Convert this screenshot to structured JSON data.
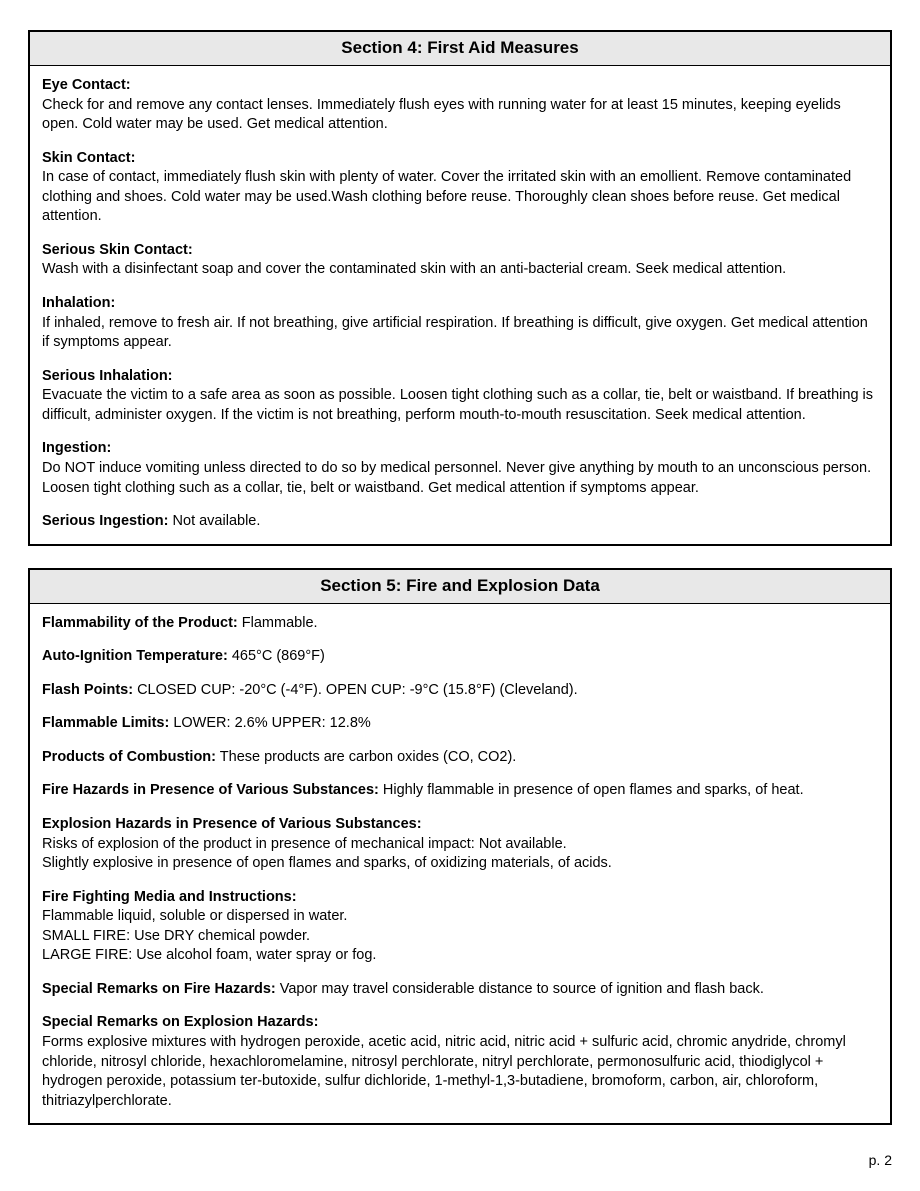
{
  "section4": {
    "title": "Section 4: First Aid Measures",
    "entries": [
      {
        "label": "Eye Contact:",
        "mode": "block",
        "text": "Check for and remove any contact lenses. Immediately flush eyes with running water for at least 15 minutes, keeping eyelids open. Cold water may be used. Get medical attention."
      },
      {
        "label": "Skin Contact:",
        "mode": "block",
        "text": "In case of contact, immediately flush skin with plenty of water. Cover the irritated skin with an emollient. Remove contaminated clothing and shoes. Cold water may be used.Wash clothing before reuse. Thoroughly clean shoes before reuse. Get medical attention."
      },
      {
        "label": "Serious Skin Contact:",
        "mode": "block",
        "text": "Wash with a disinfectant soap and cover the contaminated skin with an anti-bacterial cream. Seek medical attention."
      },
      {
        "label": "Inhalation:",
        "mode": "block",
        "text": "If inhaled, remove to fresh air. If not breathing, give artificial respiration. If breathing is difficult, give oxygen. Get medical attention if symptoms appear."
      },
      {
        "label": "Serious Inhalation:",
        "mode": "block",
        "text": "Evacuate the victim to a safe area as soon as possible. Loosen tight clothing such as a collar, tie, belt or waistband. If breathing is difficult, administer oxygen. If the victim is not breathing, perform mouth-to-mouth resuscitation. Seek medical attention."
      },
      {
        "label": "Ingestion:",
        "mode": "block",
        "text": "Do NOT induce vomiting unless directed to do so by medical personnel. Never give anything by mouth to an unconscious person. Loosen tight clothing such as a collar, tie, belt or waistband. Get medical attention if symptoms appear."
      },
      {
        "label": "Serious Ingestion:",
        "mode": "inline",
        "text": " Not available."
      }
    ]
  },
  "section5": {
    "title": "Section 5: Fire and Explosion Data",
    "entries": [
      {
        "label": "Flammability of the Product:",
        "mode": "inline",
        "text": " Flammable."
      },
      {
        "label": "Auto-Ignition Temperature:",
        "mode": "inline",
        "text": " 465°C (869°F)"
      },
      {
        "label": "Flash Points:",
        "mode": "inline",
        "text": " CLOSED CUP: -20°C (-4°F). OPEN CUP: -9°C (15.8°F) (Cleveland)."
      },
      {
        "label": "Flammable Limits:",
        "mode": "inline",
        "text": " LOWER: 2.6% UPPER: 12.8%"
      },
      {
        "label": "Products of Combustion:",
        "mode": "inline",
        "text": " These products are carbon oxides (CO, CO2)."
      },
      {
        "label": "Fire Hazards in Presence of Various Substances:",
        "mode": "inline",
        "text": " Highly flammable in presence of open flames and sparks, of heat."
      },
      {
        "label": "Explosion Hazards in Presence of Various Substances:",
        "mode": "block",
        "text": "Risks of explosion of the product in presence of mechanical impact: Not available.\nSlightly explosive in presence of open flames and sparks, of oxidizing materials, of acids."
      },
      {
        "label": "Fire Fighting Media and Instructions:",
        "mode": "block",
        "text": "Flammable liquid, soluble or dispersed in water.\nSMALL FIRE: Use DRY chemical powder.\nLARGE FIRE: Use alcohol foam, water spray or fog."
      },
      {
        "label": "Special Remarks on Fire Hazards:",
        "mode": "inline",
        "text": " Vapor may travel considerable distance to source of ignition and flash back."
      },
      {
        "label": "Special Remarks on Explosion Hazards:",
        "mode": "block",
        "text": "Forms explosive mixtures with hydrogen peroxide, acetic acid, nitric acid, nitric acid + sulfuric acid, chromic anydride, chromyl chloride, nitrosyl chloride, hexachloromelamine, nitrosyl perchlorate, nitryl perchlorate, permonosulfuric acid, thiodiglycol + hydrogen peroxide, potassium ter-butoxide, sulfur dichloride, 1-methyl-1,3-butadiene, bromoform, carbon, air, chloroform, thitriazylperchlorate."
      }
    ]
  },
  "footer": "p. 2"
}
